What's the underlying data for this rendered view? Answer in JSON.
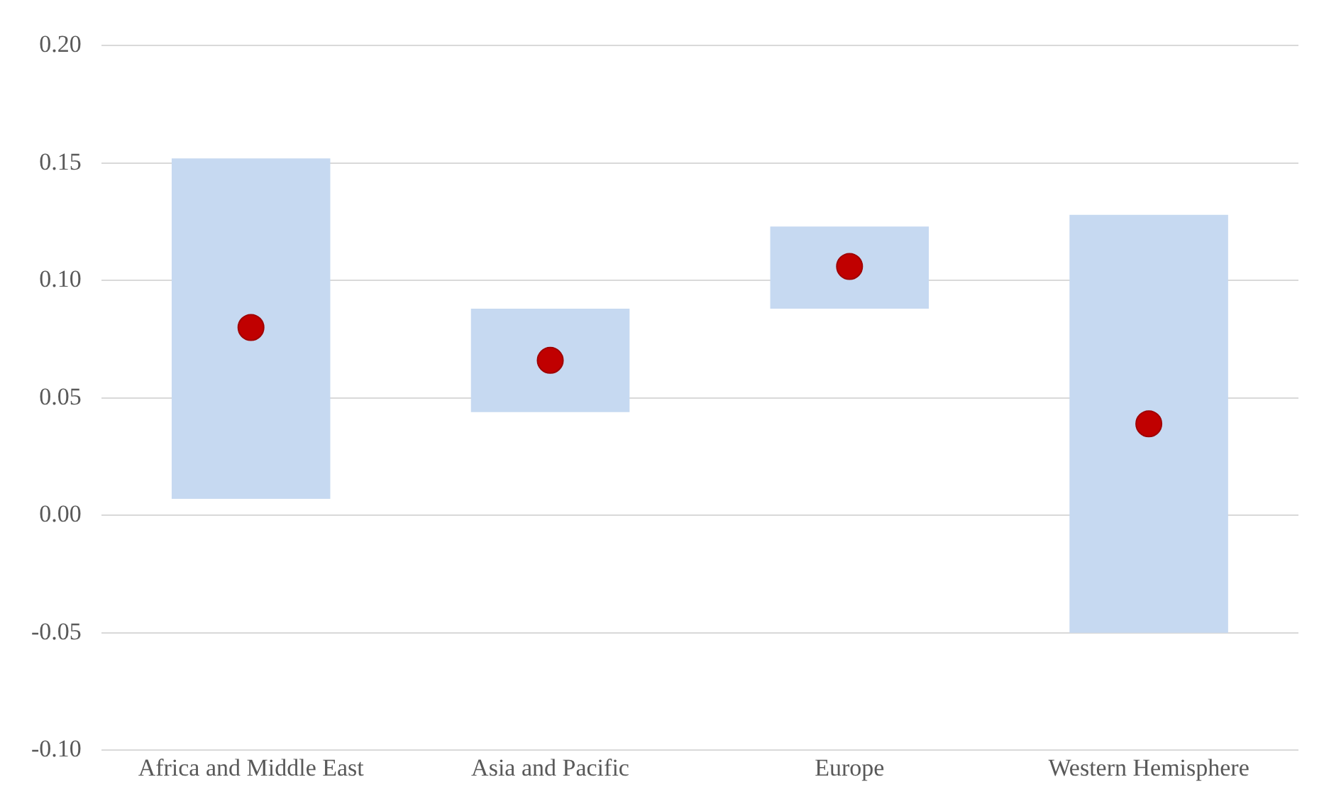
{
  "chart_data": {
    "type": "bar",
    "categories": [
      "Africa and Middle East",
      "Asia and Pacific",
      "Europe",
      "Western Hemisphere"
    ],
    "series": [
      {
        "color": "#c6d9f1",
        "base": [
          0.007,
          0.044,
          0.088,
          -0.05
        ],
        "values": [
          0.145,
          0.044,
          0.035,
          0.178
        ]
      },
      {
        "type": "scatter",
        "color": "#c00000",
        "x": [
          "Africa and Middle East",
          "Asia and Pacific",
          "Europe",
          "Western Hemisphere"
        ],
        "values": [
          0.08,
          0.066,
          0.106,
          0.039
        ],
        "marker": "circle"
      }
    ],
    "ylim": [
      -0.1,
      0.2
    ],
    "yticks": [
      {
        "value": -0.1,
        "label": "-0.10"
      },
      {
        "value": -0.05,
        "label": "-0.05"
      },
      {
        "value": 0,
        "label": "0.00"
      },
      {
        "value": 0.05,
        "label": "0.05"
      },
      {
        "value": 0.1,
        "label": "0.10"
      },
      {
        "value": 0.15,
        "label": "0.15"
      },
      {
        "value": 0.2,
        "label": "0.20"
      }
    ],
    "grid": "y",
    "legend": false
  }
}
